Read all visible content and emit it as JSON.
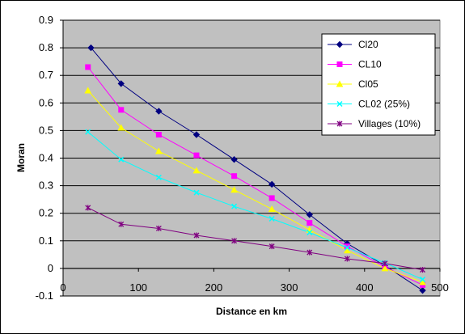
{
  "chart_data": {
    "type": "line",
    "title": "",
    "xlabel": "Distance en km",
    "ylabel": "Moran",
    "xlim": [
      0,
      500
    ],
    "ylim": [
      -0.1,
      0.9
    ],
    "x_ticks": [
      "0",
      "100",
      "200",
      "300",
      "400",
      "500"
    ],
    "y_ticks": [
      "-0.1",
      "0",
      "0.1",
      "0.2",
      "0.3",
      "0.4",
      "0.5",
      "0.6",
      "0.7",
      "0.8",
      "0.9"
    ],
    "grid": "horizontal",
    "legend_position": "top-right",
    "plot_background": "#c0c0c0",
    "series": [
      {
        "name": "Cl20",
        "color": "#000080",
        "marker": "diamond",
        "x": [
          37,
          77,
          127,
          177,
          227,
          277,
          327,
          377,
          427,
          477
        ],
        "y": [
          0.8,
          0.67,
          0.57,
          0.485,
          0.395,
          0.305,
          0.195,
          0.09,
          0.01,
          -0.08
        ]
      },
      {
        "name": "CL10",
        "color": "#ff00ff",
        "marker": "square",
        "x": [
          33,
          77,
          127,
          177,
          227,
          277,
          327,
          377,
          427,
          477
        ],
        "y": [
          0.73,
          0.575,
          0.485,
          0.41,
          0.335,
          0.255,
          0.165,
          0.08,
          0.005,
          -0.06
        ]
      },
      {
        "name": "Cl05",
        "color": "#ffff00",
        "marker": "triangle",
        "x": [
          33,
          77,
          127,
          177,
          227,
          277,
          327,
          377,
          427,
          477
        ],
        "y": [
          0.645,
          0.51,
          0.425,
          0.355,
          0.285,
          0.215,
          0.14,
          0.065,
          0.0,
          -0.05
        ]
      },
      {
        "name": "CL02 (25%)",
        "color": "#00ffff",
        "marker": "x",
        "x": [
          33,
          77,
          127,
          177,
          227,
          277,
          327,
          377,
          427,
          477
        ],
        "y": [
          0.495,
          0.395,
          0.33,
          0.275,
          0.225,
          0.18,
          0.13,
          0.075,
          0.02,
          -0.04
        ]
      },
      {
        "name": "Villages (10%)",
        "color": "#800080",
        "marker": "star",
        "x": [
          33,
          77,
          127,
          177,
          227,
          277,
          327,
          377,
          427,
          477
        ],
        "y": [
          0.22,
          0.16,
          0.145,
          0.12,
          0.1,
          0.08,
          0.058,
          0.035,
          0.018,
          -0.005
        ]
      }
    ]
  }
}
